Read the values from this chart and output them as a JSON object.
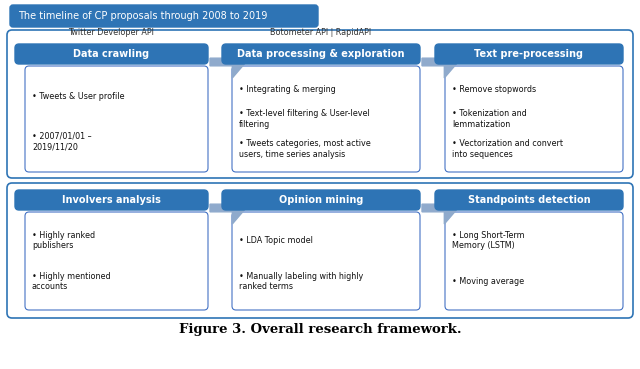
{
  "title": "Figure 3. Overall research framework.",
  "bg_color": "#ffffff",
  "timeline_box": {
    "text": "The timeline of CP proposals through 2008 to 2019",
    "color": "#2E74B5",
    "text_color": "#ffffff"
  },
  "row1_sublabels": [
    "Twitter Developer API",
    "Botometer API | RapidAPI",
    ""
  ],
  "row1_boxes": [
    {
      "label": "Data crawling",
      "color": "#2E74B5",
      "text_color": "#ffffff",
      "bullets": [
        "Tweets & User profile",
        "2007/01/01 –\n2019/11/20"
      ]
    },
    {
      "label": "Data processing & exploration",
      "color": "#2E74B5",
      "text_color": "#ffffff",
      "bullets": [
        "Integrating & merging",
        "Text-level filtering & User-level\nfiltering",
        "Tweets categories, most active\nusers, time series analysis"
      ]
    },
    {
      "label": "Text pre-processing",
      "color": "#2E74B5",
      "text_color": "#ffffff",
      "bullets": [
        "Remove stopwords",
        "Tokenization and\nlemmatization",
        "Vectorization and convert\ninto sequences"
      ]
    }
  ],
  "row2_boxes": [
    {
      "label": "Involvers analysis",
      "color": "#2E74B5",
      "text_color": "#ffffff",
      "bullets": [
        "Highly ranked\npublishers",
        "Highly mentioned\naccounts"
      ]
    },
    {
      "label": "Opinion mining",
      "color": "#2E74B5",
      "text_color": "#ffffff",
      "bullets": [
        "LDA Topic model",
        "Manually labeling with highly\nranked terms"
      ]
    },
    {
      "label": "Standpoints detection",
      "color": "#2E74B5",
      "text_color": "#ffffff",
      "bullets": [
        "Long Short-Term\nMemory (LSTM)",
        "Moving average"
      ]
    }
  ],
  "arrow_color": "#8FAACC",
  "border_color": "#2E74B5",
  "detail_bg": "#ffffff",
  "detail_border": "#4472C4",
  "label_font_size": 7.0,
  "sublabel_font_size": 5.8,
  "bullet_font_size": 5.8,
  "title_font_size": 9.5
}
